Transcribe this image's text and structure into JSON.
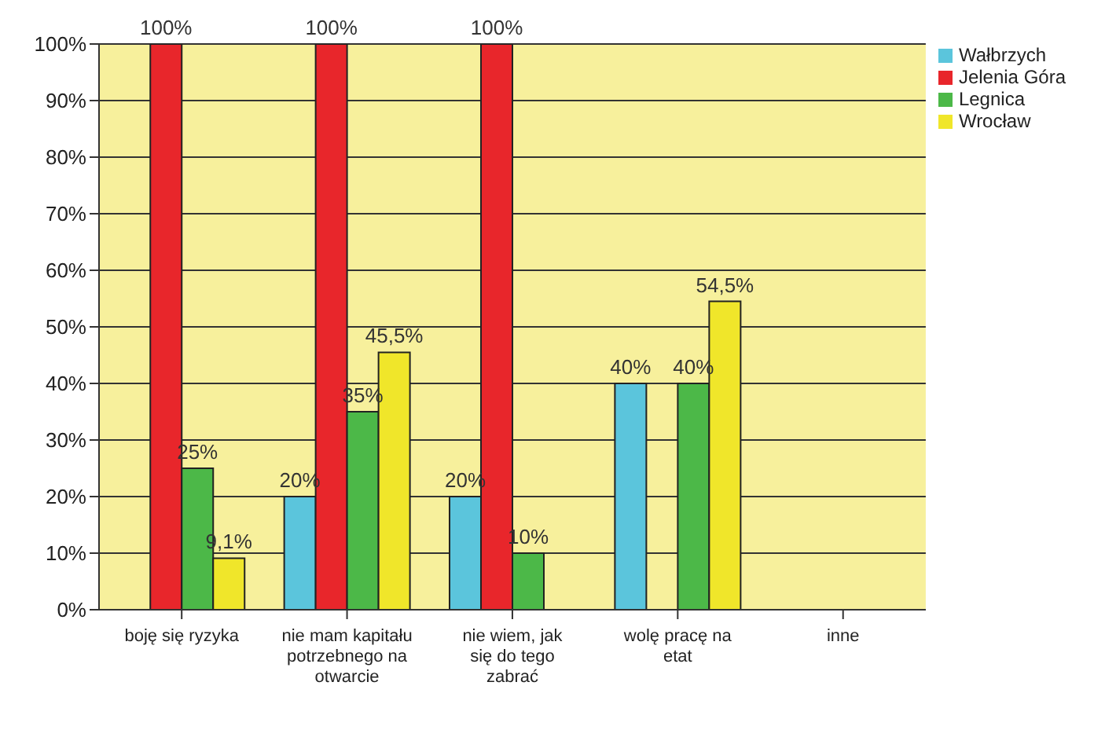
{
  "chart_data": {
    "type": "bar",
    "categories": [
      "boję się ryzyka",
      "nie mam kapitału potrzebnego na otwarcie",
      "nie wiem, jak się do tego zabrać",
      "wolę pracę na etat",
      "inne"
    ],
    "series": [
      {
        "name": "Wałbrzych",
        "color": "#5bc5dc",
        "values": [
          null,
          20,
          20,
          40,
          null
        ],
        "value_labels": [
          null,
          "20%",
          "20%",
          "40%",
          null
        ]
      },
      {
        "name": "Jelenia Góra",
        "color": "#e8262b",
        "values": [
          100,
          100,
          100,
          null,
          null
        ],
        "value_labels": [
          "100%",
          "100%",
          "100%",
          null,
          null
        ]
      },
      {
        "name": "Legnica",
        "color": "#4cb848",
        "values": [
          25,
          35,
          10,
          40,
          null
        ],
        "value_labels": [
          "25%",
          "35%",
          "10%",
          "40%",
          null
        ]
      },
      {
        "name": "Wrocław",
        "color": "#f0e62a",
        "values": [
          9.1,
          45.5,
          null,
          54.5,
          null
        ],
        "value_labels": [
          "9,1%",
          "45,5%",
          null,
          "54,5%",
          null
        ]
      }
    ],
    "ylim": [
      0,
      100
    ],
    "yticks": [
      {
        "value": 0,
        "label": "0%"
      },
      {
        "value": 10,
        "label": "10%"
      },
      {
        "value": 20,
        "label": "20%"
      },
      {
        "value": 30,
        "label": "30%"
      },
      {
        "value": 40,
        "label": "40%"
      },
      {
        "value": 50,
        "label": "50%"
      },
      {
        "value": 60,
        "label": "60%"
      },
      {
        "value": 70,
        "label": "70%"
      },
      {
        "value": 80,
        "label": "80%"
      },
      {
        "value": 90,
        "label": "90%"
      },
      {
        "value": 100,
        "label": "100%"
      }
    ],
    "grid": "y",
    "legend": "top right"
  }
}
